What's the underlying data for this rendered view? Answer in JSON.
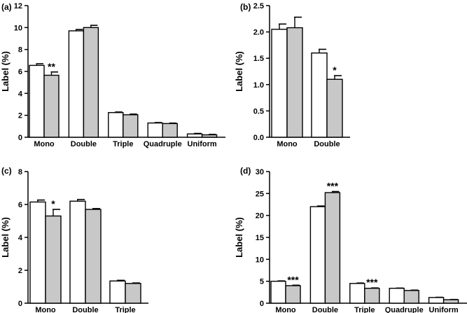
{
  "chart_data": [
    {
      "type": "bar",
      "panel": "(a)",
      "ylabel": "Label (%)",
      "ylim": [
        0,
        12
      ],
      "yticks": [
        0,
        2,
        4,
        6,
        8,
        10,
        12
      ],
      "categories": [
        "Mono",
        "Double",
        "Triple",
        "Quadruple",
        "Uniform"
      ],
      "series": [
        {
          "fill": "#ffffff",
          "values": [
            6.55,
            9.7,
            2.25,
            1.3,
            0.3
          ],
          "errors": [
            0.15,
            0.12,
            0.05,
            0.04,
            0.05
          ]
        },
        {
          "fill": "#c8c8c8",
          "values": [
            5.65,
            10.0,
            2.05,
            1.25,
            0.22
          ],
          "errors": [
            0.3,
            0.2,
            0.06,
            0.04,
            0.04
          ]
        }
      ],
      "annotations": [
        {
          "category": 0,
          "series": 1,
          "text": "**"
        }
      ]
    },
    {
      "type": "bar",
      "panel": "(b)",
      "ylabel": "Label (%)",
      "ylim": [
        0,
        2.5
      ],
      "yticks": [
        "0.0",
        "0.5",
        "1.0",
        "1.5",
        "2.0",
        "2.5"
      ],
      "categories": [
        "Mono",
        "Double"
      ],
      "series": [
        {
          "fill": "#ffffff",
          "values": [
            2.05,
            1.6
          ],
          "errors": [
            0.1,
            0.07
          ]
        },
        {
          "fill": "#c8c8c8",
          "values": [
            2.08,
            1.1
          ],
          "errors": [
            0.2,
            0.07
          ]
        }
      ],
      "annotations": [
        {
          "category": 1,
          "series": 1,
          "text": "*"
        }
      ]
    },
    {
      "type": "bar",
      "panel": "(c)",
      "ylabel": "Label (%)",
      "ylim": [
        0,
        8
      ],
      "yticks": [
        0,
        2,
        4,
        6,
        8
      ],
      "categories": [
        "Mono",
        "Double",
        "Triple"
      ],
      "series": [
        {
          "fill": "#ffffff",
          "values": [
            6.15,
            6.2,
            1.35
          ],
          "errors": [
            0.12,
            0.1,
            0.04
          ]
        },
        {
          "fill": "#c8c8c8",
          "values": [
            5.3,
            5.7,
            1.2
          ],
          "errors": [
            0.4,
            0.05,
            0.03
          ]
        }
      ],
      "annotations": [
        {
          "category": 0,
          "series": 1,
          "text": "*"
        }
      ]
    },
    {
      "type": "bar",
      "panel": "(d)",
      "ylabel": "Label (%)",
      "ylim": [
        0,
        30
      ],
      "yticks": [
        0,
        5,
        10,
        15,
        20,
        25,
        30
      ],
      "categories": [
        "Mono",
        "Double",
        "Triple",
        "Quadruple",
        "Uniform"
      ],
      "series": [
        {
          "fill": "#ffffff",
          "values": [
            5.0,
            22.0,
            4.5,
            3.4,
            1.3
          ],
          "errors": [
            0.08,
            0.15,
            0.1,
            0.05,
            0.05
          ]
        },
        {
          "fill": "#c8c8c8",
          "values": [
            4.0,
            25.2,
            3.4,
            2.9,
            0.8
          ],
          "errors": [
            0.1,
            0.25,
            0.08,
            0.08,
            0.05
          ]
        }
      ],
      "annotations": [
        {
          "category": 0,
          "series": 1,
          "text": "***"
        },
        {
          "category": 1,
          "series": 1,
          "text": "***"
        },
        {
          "category": 2,
          "series": 1,
          "text": "***"
        }
      ]
    }
  ]
}
